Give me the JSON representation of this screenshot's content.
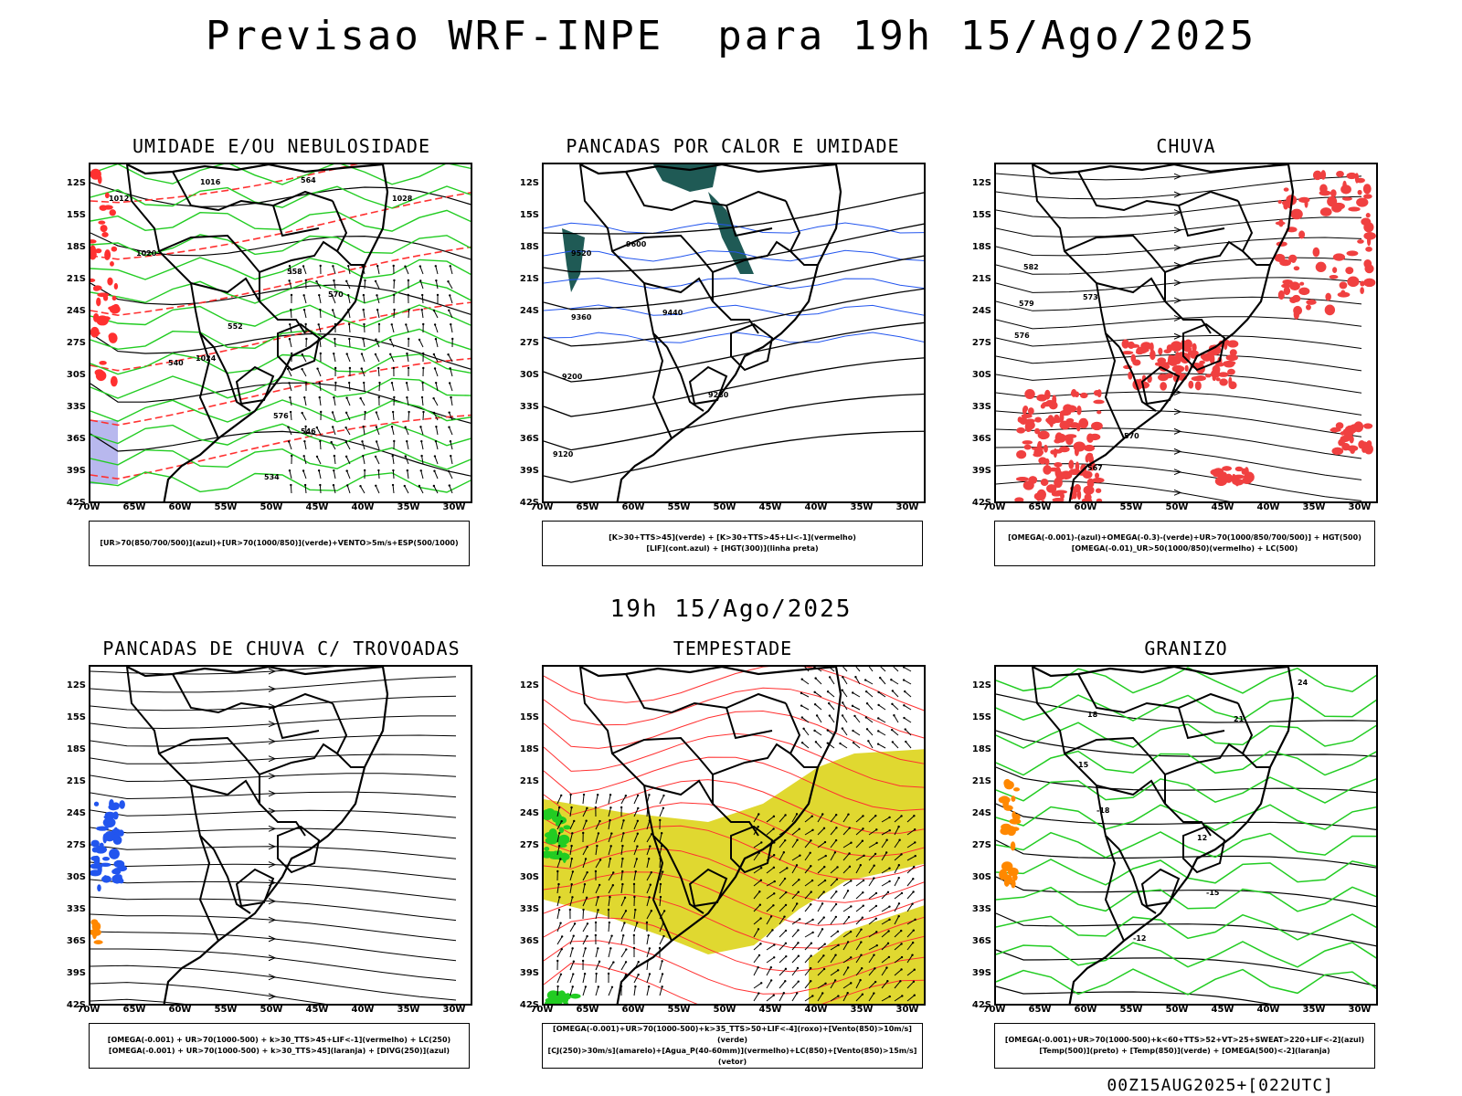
{
  "title": "Previsao WRF-INPE  para 19h 15/Ago/2025",
  "mid_time": "19h 15/Ago/2025",
  "footer": "00Z15AUG2025+[022UTC]",
  "lat_labels": [
    "12S",
    "15S",
    "18S",
    "21S",
    "24S",
    "27S",
    "30S",
    "33S",
    "36S",
    "39S",
    "42S"
  ],
  "lon_labels": [
    "70W",
    "65W",
    "60W",
    "55W",
    "50W",
    "45W",
    "40W",
    "35W",
    "30W"
  ],
  "panels": [
    {
      "id": "umidade",
      "title": "UMIDADE E/OU NEBULOSIDADE",
      "legend": [
        "[UR>70(850/700/500)](azul)+[UR>70(1000/850)](verde)+VENTO>5m/s+ESP(500/1000)"
      ]
    },
    {
      "id": "pancadas",
      "title": "PANCADAS POR CALOR E UMIDADE",
      "legend": [
        "[K>30+TTS>45](verde) + [K>30+TTS>45+LI<-1](vermelho)",
        "[LIF](cont.azul) + [HGT(300)](linha preta)"
      ]
    },
    {
      "id": "chuva",
      "title": "CHUVA",
      "legend": [
        "[OMEGA(-0.001)-(azul)+OMEGA(-0.3)-(verde)+UR>70(1000/850/700/500)] + HGT(500)",
        "[OMEGA(-0.01)_UR>50(1000/850)(vermelho) + LC(500)"
      ]
    },
    {
      "id": "trovoadas",
      "title": "PANCADAS DE CHUVA C/ TROVOADAS",
      "legend": [
        "[OMEGA(-0.001) + UR>70(1000-500) + k>30_TTS>45+LIF<-1](vermelho) + LC(250)",
        "[OMEGA(-0.001) + UR>70(1000-500) + k>30_TTS>45](laranja) + [DIVG(250)](azul)"
      ]
    },
    {
      "id": "tempestade",
      "title": "TEMPESTADE",
      "legend": [
        "[OMEGA(-0.001)+UR>70(1000-500)+k>35_TTS>50+LIF<-4](roxo)+[Vento(850)>10m/s](verde)",
        "[CJ(250)>30m/s](amarelo)+[Agua_P(40-60mm)](vermelho)+LC(850)+[Vento(850)>15m/s](vetor)"
      ]
    },
    {
      "id": "granizo",
      "title": "GRANIZO",
      "legend": [
        "[OMEGA(-0.001)+UR>70(1000-500)+k<60+TTS>52+VT>25+SWEAT>220+LIF<-2](azul)",
        "[Temp(500)](preto) + [Temp(850)](verde) + [OMEGA(500)<-2](laranja)"
      ]
    }
  ],
  "contour_labels": {
    "umidade": [
      "1012",
      "1016",
      "1020",
      "1024",
      "1028",
      "570",
      "576",
      "564",
      "558",
      "552",
      "546",
      "540",
      "534"
    ],
    "pancadas": [
      "9600",
      "9520",
      "9440",
      "9360",
      "9280",
      "9200",
      "9120"
    ],
    "chuva": [
      "582",
      "579",
      "576",
      "573",
      "570",
      "567"
    ],
    "granizo": [
      "-18",
      "-15",
      "-12",
      "12",
      "15",
      "18",
      "21",
      "24"
    ]
  },
  "colors": {
    "green": "#22cc22",
    "red": "#ff3030",
    "red_fill": "#f04040",
    "blue": "#2255ee",
    "teal": "#1f5a55",
    "yellow": "#e0d830",
    "lavender": "#b8b8ee",
    "orange": "#ff8800"
  }
}
